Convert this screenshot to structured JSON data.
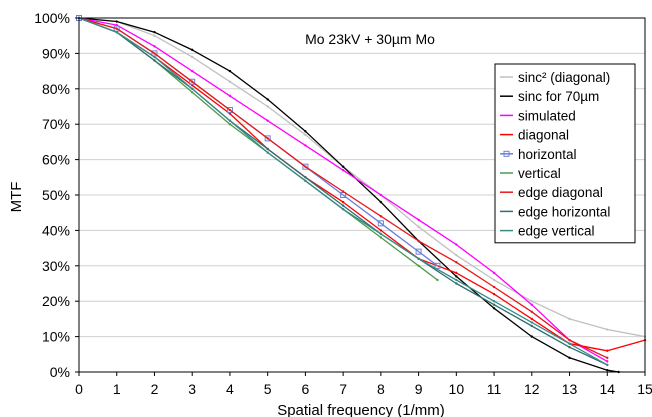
{
  "chart_data": {
    "type": "line",
    "title": "Mo 23kV + 30µm Mo",
    "xlabel": "Spatial frequency (1/mm)",
    "ylabel": "MTF",
    "xlim": [
      0,
      15
    ],
    "ylim": [
      0,
      100
    ],
    "xticks": [
      "0",
      "1",
      "2",
      "3",
      "4",
      "5",
      "6",
      "7",
      "8",
      "9",
      "10",
      "11",
      "12",
      "13",
      "14",
      "15"
    ],
    "yticks": [
      "0%",
      "10%",
      "20%",
      "30%",
      "40%",
      "50%",
      "60%",
      "70%",
      "80%",
      "90%",
      "100%"
    ],
    "grid": "horizontal",
    "legend_position": "right",
    "series": [
      {
        "name": "sinc² (diagonal)",
        "color": "#c0c0c0",
        "marker": "none",
        "x": [
          0,
          1,
          2,
          3,
          4,
          5,
          6,
          7,
          8,
          9,
          10,
          11,
          12,
          13,
          14,
          15
        ],
        "y": [
          100,
          99,
          95,
          89,
          82,
          75,
          67,
          58,
          50,
          41,
          33,
          26,
          20,
          15,
          12,
          10
        ]
      },
      {
        "name": "sinc for 70µm",
        "color": "#000000",
        "marker": "none",
        "x": [
          0,
          1,
          2,
          3,
          4,
          5,
          6,
          7,
          8,
          9,
          10,
          11,
          12,
          13,
          14,
          14.3
        ],
        "y": [
          100,
          99,
          96,
          91,
          85,
          77,
          68,
          58,
          48,
          37,
          27,
          18,
          10,
          4,
          0.5,
          0
        ]
      },
      {
        "name": "simulated",
        "color": "#ff00ff",
        "marker": "none",
        "x": [
          0,
          1,
          2,
          3,
          4,
          5,
          6,
          7,
          8,
          9,
          10,
          11,
          12,
          13,
          14
        ],
        "y": [
          100,
          98,
          92,
          85,
          78,
          71,
          64,
          57,
          50,
          43,
          36,
          28,
          19,
          9,
          3
        ]
      },
      {
        "name": "diagonal",
        "color": "#ff0000",
        "marker": "none",
        "x": [
          0,
          1,
          2,
          3,
          4,
          5,
          6,
          7,
          8,
          9,
          10,
          11,
          12,
          13,
          14,
          15
        ],
        "y": [
          100,
          96,
          89,
          81,
          73,
          63,
          55,
          48,
          40,
          32,
          28,
          22,
          15,
          8,
          6,
          9
        ]
      },
      {
        "name": "horizontal",
        "color": "#6a7fd8",
        "marker": "square",
        "x": [
          0,
          1,
          2,
          3,
          4,
          5,
          6,
          7,
          8,
          9,
          9.5
        ],
        "y": [
          100,
          97,
          90,
          82,
          74,
          66,
          58,
          50,
          42,
          34,
          30
        ]
      },
      {
        "name": "vertical",
        "color": "#4e9a4e",
        "marker": "none",
        "x": [
          0,
          1,
          2,
          3,
          4,
          5,
          6,
          7,
          8,
          9,
          9.5
        ],
        "y": [
          100,
          96,
          88,
          79,
          70,
          62,
          54,
          46,
          38,
          30,
          26
        ]
      },
      {
        "name": "edge diagonal",
        "color": "#e81818",
        "marker": "none",
        "x": [
          0,
          1,
          2,
          3,
          4,
          5,
          6,
          7,
          8,
          9,
          10,
          11,
          12,
          13,
          14
        ],
        "y": [
          100,
          97,
          90,
          82,
          74,
          66,
          58,
          51,
          44,
          37,
          31,
          24,
          17,
          9,
          4
        ]
      },
      {
        "name": "edge horizontal",
        "color": "#2f6f6f",
        "marker": "none",
        "x": [
          0,
          1,
          2,
          3,
          4,
          5,
          6,
          7,
          8,
          9,
          10,
          11,
          12,
          13,
          14
        ],
        "y": [
          100,
          96,
          88,
          80,
          71,
          63,
          55,
          47,
          39,
          32,
          25,
          19,
          13,
          7,
          2
        ]
      },
      {
        "name": "edge vertical",
        "color": "#3a8a8a",
        "marker": "none",
        "x": [
          0,
          1,
          2,
          3,
          4,
          5,
          6,
          7,
          8,
          9,
          10,
          11,
          12,
          13,
          14
        ],
        "y": [
          100,
          96,
          89,
          80,
          71,
          62,
          54,
          46,
          39,
          32,
          26,
          20,
          14,
          8,
          2
        ]
      }
    ]
  }
}
